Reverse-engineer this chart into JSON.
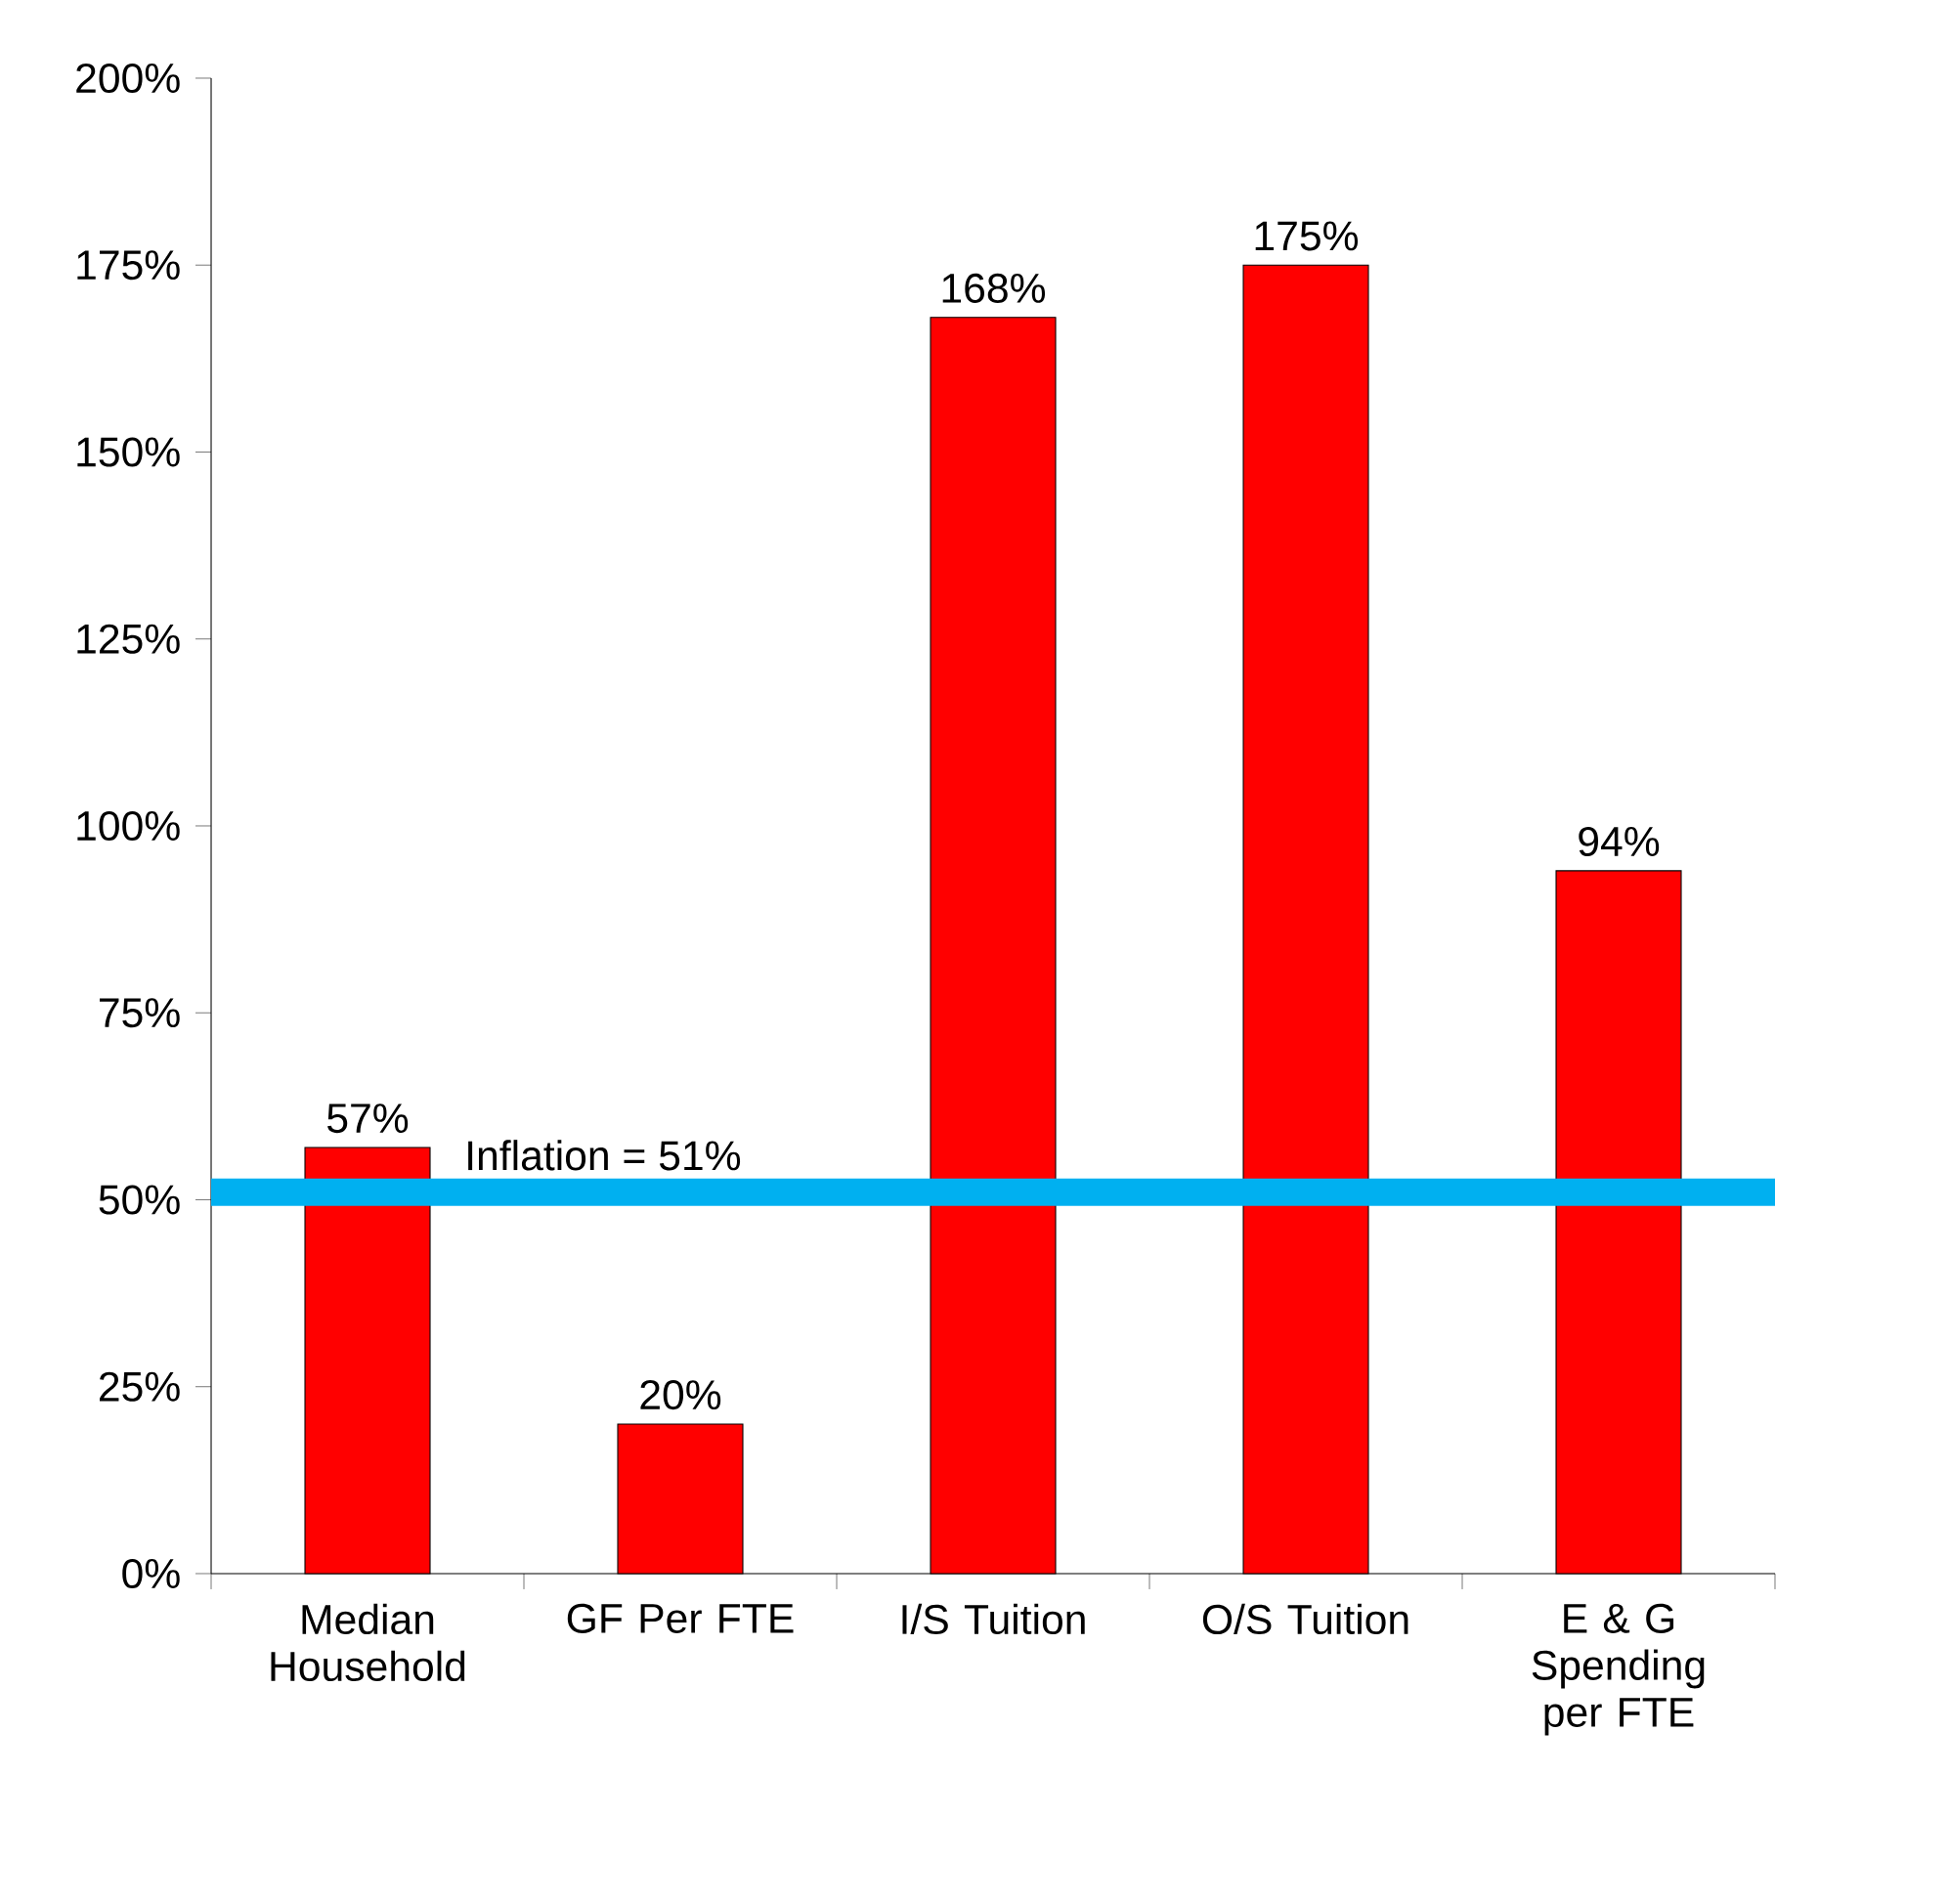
{
  "chart_data": {
    "type": "bar",
    "categories": [
      "Median Household",
      "GF Per FTE",
      "I/S Tuition",
      "O/S Tuition",
      "E & G Spending per FTE"
    ],
    "values": [
      57,
      20,
      168,
      175,
      94
    ],
    "value_labels": [
      "57%",
      "20%",
      "168%",
      "175%",
      "94%"
    ],
    "color": "#ff0000",
    "ylim": [
      0,
      200
    ],
    "yticks": [
      {
        "value": 0,
        "label": "0%"
      },
      {
        "value": 25,
        "label": "25%"
      },
      {
        "value": 50,
        "label": "50%"
      },
      {
        "value": 75,
        "label": "75%"
      },
      {
        "value": 100,
        "label": "100%"
      },
      {
        "value": 125,
        "label": "125%"
      },
      {
        "value": 150,
        "label": "150%"
      },
      {
        "value": 175,
        "label": "175%"
      },
      {
        "value": 200,
        "label": "200%"
      }
    ],
    "ref_lines": [
      {
        "axis": "y",
        "value": 51,
        "label": "Inflation = 51%",
        "color": "#00b0f0"
      }
    ],
    "grid": false
  }
}
